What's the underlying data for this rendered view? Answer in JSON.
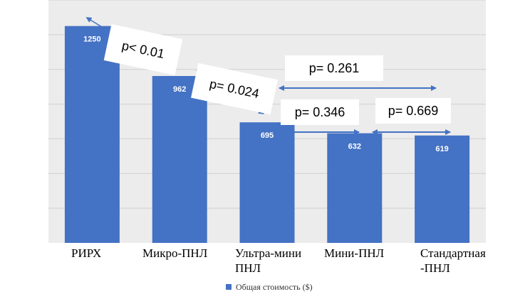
{
  "chart_data": {
    "type": "bar",
    "categories": [
      "РИРХ",
      "Микро-ПНЛ",
      "Ультра-мини ПНЛ",
      "Мини-ПНЛ",
      "Стандартная -ПНЛ"
    ],
    "category_lines": [
      [
        "РИРХ"
      ],
      [
        "Микро-ПНЛ"
      ],
      [
        "Ультра-мини",
        "ПНЛ"
      ],
      [
        "Мини-ПНЛ"
      ],
      [
        "Стандартная",
        "-ПНЛ"
      ]
    ],
    "series": [
      {
        "name": "Общая стоимость ($)",
        "values": [
          1250,
          962,
          695,
          632,
          619
        ]
      }
    ],
    "value_labels": [
      "1250",
      "962",
      "695",
      "632",
      "619"
    ],
    "ylim": [
      0,
      1400
    ],
    "gridlines": [
      200,
      400,
      600,
      800,
      1000,
      1200,
      1400
    ],
    "grid": true,
    "legend": "bottom-center",
    "bar_color": "#4472c4",
    "comparisons": [
      {
        "label": "p< 0.01",
        "from": 0,
        "to": 1
      },
      {
        "label": "p= 0.024",
        "from": 1,
        "to": 2
      },
      {
        "label": "p= 0.261",
        "from": 2,
        "to": 4
      },
      {
        "label": "p= 0.346",
        "from": 2,
        "to": 3
      },
      {
        "label": "p= 0.669",
        "from": 3,
        "to": 4
      }
    ]
  }
}
